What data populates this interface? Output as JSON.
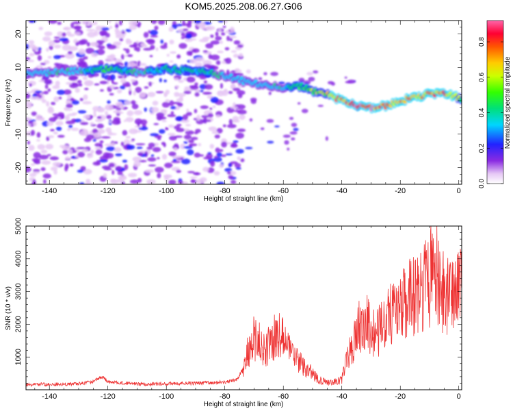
{
  "title": "KOM5.2025.208.06.27.G06",
  "chart_data": [
    {
      "type": "heatmap",
      "panel": "top",
      "xlabel": "Height of straight line (km)",
      "ylabel": "Frequency (Hz)",
      "xlim": [
        -148,
        1
      ],
      "ylim": [
        -25,
        24
      ],
      "xticks": [
        -140,
        -120,
        -100,
        -80,
        -60,
        -40,
        -20,
        0
      ],
      "yticks": [
        -20,
        -10,
        0,
        10,
        20
      ],
      "colorbar": {
        "label": "Normalized spectral amplitude",
        "range": [
          0,
          0.92
        ],
        "ticks": [
          0.0,
          0.2,
          0.4,
          0.6,
          0.8
        ],
        "colormap": "rainbow (white-violet-blue-cyan-green-yellow-red-pink)"
      },
      "ridge": {
        "description": "dominant frequency band, strongest amplitude after -72 km",
        "x": [
          -148,
          -130,
          -120,
          -110,
          -100,
          -90,
          -80,
          -72,
          -65,
          -60,
          -55,
          -50,
          -45,
          -40,
          -35,
          -30,
          -25,
          -20,
          -15,
          -10,
          -5,
          0,
          1
        ],
        "y": [
          8,
          9,
          9.5,
          8.5,
          9.5,
          9,
          7.5,
          5.5,
          4.5,
          4,
          4.5,
          3,
          2,
          0,
          -1.5,
          -2,
          -1.5,
          0,
          1,
          2,
          2.5,
          1,
          0.5
        ],
        "amplitude": [
          0.3,
          0.35,
          0.45,
          0.35,
          0.4,
          0.4,
          0.35,
          0.3,
          0.3,
          0.35,
          0.45,
          0.55,
          0.6,
          0.75,
          0.85,
          0.9,
          0.8,
          0.75,
          0.7,
          0.75,
          0.8,
          0.6,
          0.5
        ]
      },
      "scatter_noise_extent": [
        -148,
        -74
      ]
    },
    {
      "type": "line",
      "panel": "bottom",
      "xlabel": "Height of straight line (km)",
      "ylabel": "SNR (10 * v/v)",
      "xlim": [
        -148,
        1
      ],
      "ylim": [
        0,
        5000
      ],
      "xticks": [
        -140,
        -120,
        -100,
        -80,
        -60,
        -40,
        -20,
        0
      ],
      "yticks": [
        1000,
        2000,
        3000,
        4000,
        5000
      ],
      "color": "#ee3333",
      "series": [
        {
          "x": [
            -148,
            -140,
            -130,
            -125,
            -122,
            -120,
            -110,
            -100,
            -90,
            -80,
            -76,
            -74,
            -73,
            -72,
            -70,
            -68,
            -66,
            -64,
            -62,
            -60,
            -58,
            -56,
            -54,
            -52,
            -50,
            -48,
            -46,
            -44,
            -42,
            -40,
            -38,
            -36,
            -34,
            -32,
            -30,
            -28,
            -26,
            -24,
            -22,
            -20,
            -18,
            -16,
            -14,
            -12,
            -10,
            -9,
            -8,
            -6,
            -4,
            -2,
            0,
            1
          ],
          "y": [
            150,
            170,
            180,
            250,
            400,
            250,
            170,
            180,
            200,
            230,
            300,
            600,
            900,
            1200,
            1600,
            1400,
            1200,
            1500,
            1700,
            1600,
            1300,
            1000,
            800,
            600,
            500,
            300,
            250,
            200,
            250,
            300,
            1000,
            1500,
            2000,
            2100,
            1900,
            1700,
            2000,
            2200,
            2400,
            2600,
            2700,
            2800,
            3000,
            3100,
            3400,
            4600,
            3600,
            3200,
            3000,
            2800,
            3000,
            3500
          ]
        }
      ]
    }
  ]
}
